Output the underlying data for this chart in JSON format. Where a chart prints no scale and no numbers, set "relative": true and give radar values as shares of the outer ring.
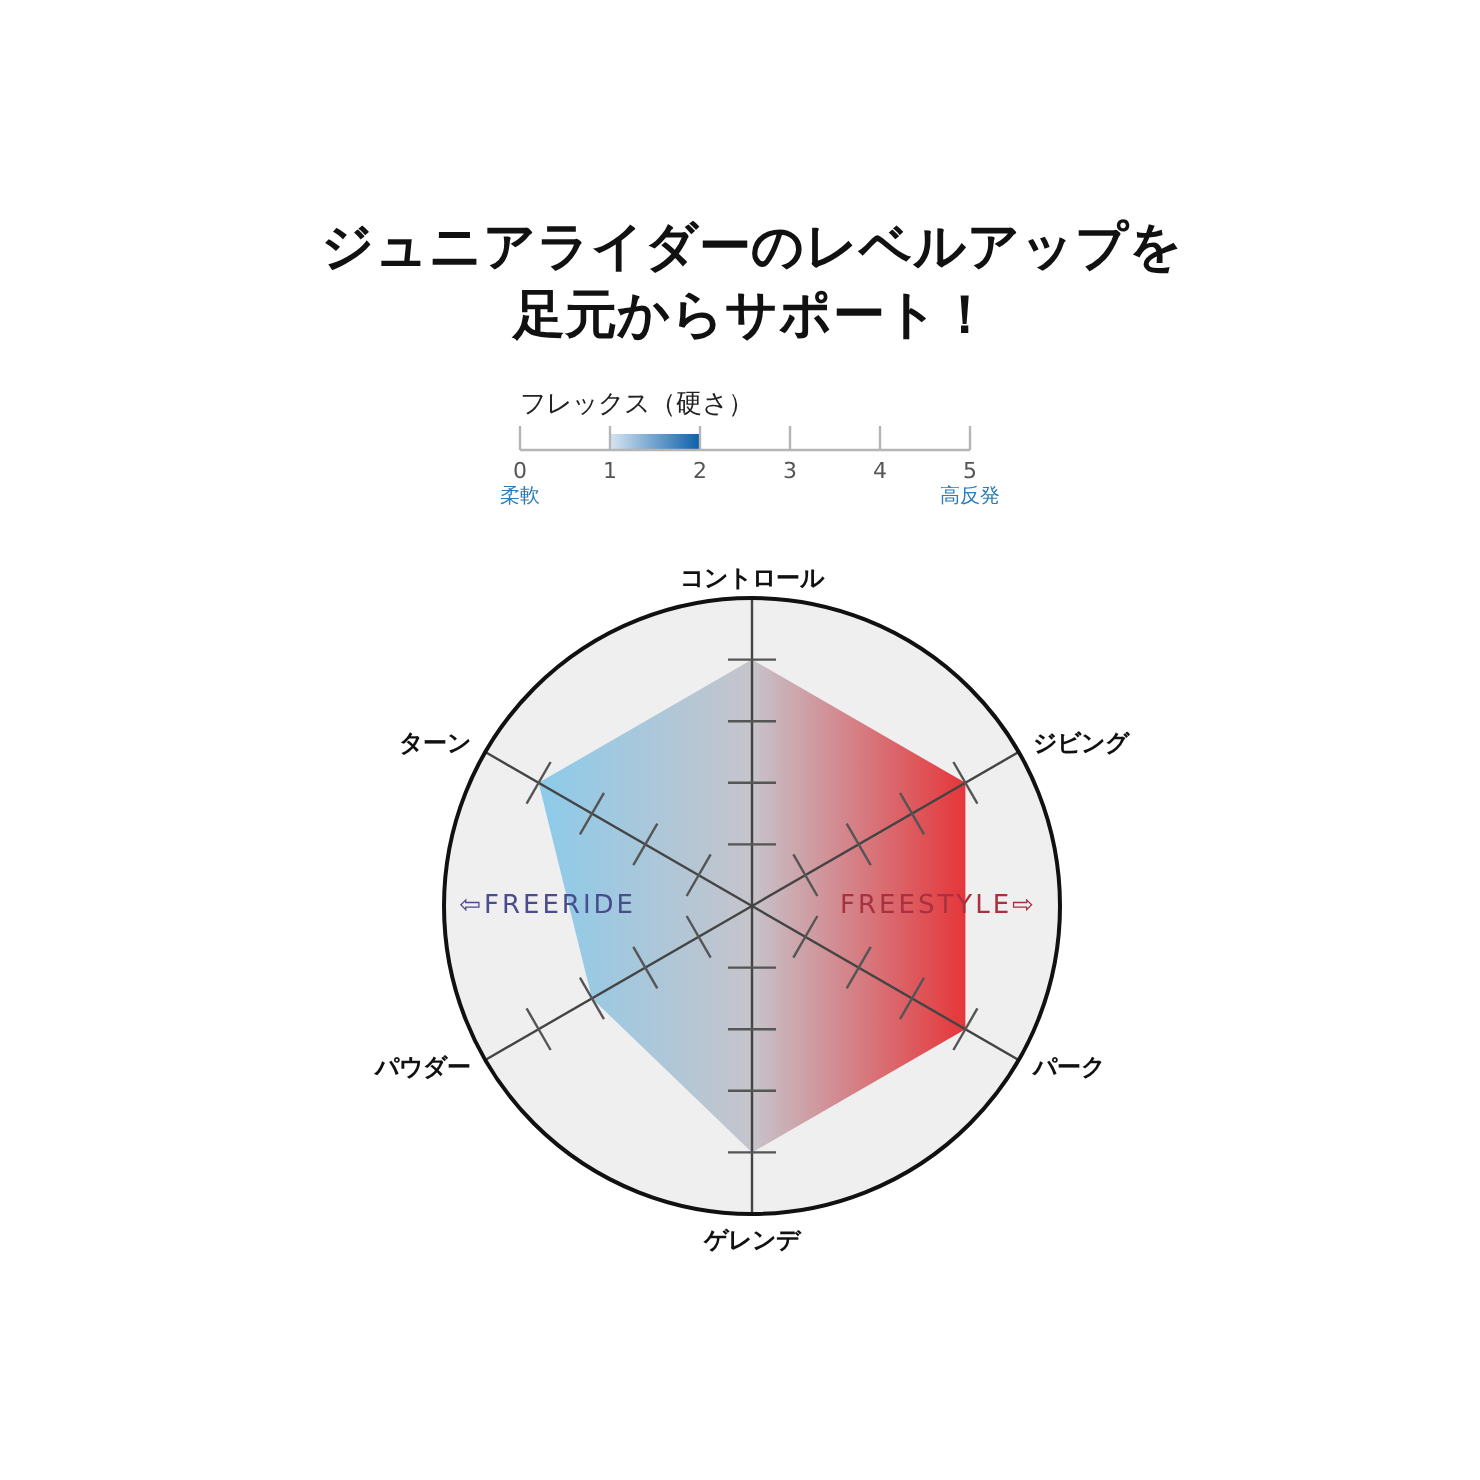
{
  "chart_data": [
    {
      "type": "bar",
      "title": "ジュニアライダーのレベルアップを足元からサポート！",
      "subtitle": "フレックス（硬さ）",
      "orientation": "horizontal",
      "categories": [
        null
      ],
      "values": [
        1
      ],
      "base": [
        1
      ],
      "color": "#0b5fab",
      "xlim": [
        0,
        5
      ],
      "xticks": [
        0,
        1,
        2,
        3,
        4,
        5
      ],
      "annotations": [
        "柔軟",
        "高反発"
      ]
    },
    {
      "type": "radar",
      "categories": [
        "コントロール",
        "ジビング",
        "パーク",
        "ゲレンデ",
        "パウダー",
        "ターン"
      ],
      "relative": true,
      "series": [
        {
          "color": "#c6c4cb",
          "values": [
            0.8,
            0.8,
            0.8,
            0.8,
            0.6,
            0.8
          ]
        }
      ],
      "annotations": [
        "⇦FREERIDE",
        "FREESTYLE⇨"
      ]
    }
  ]
}
